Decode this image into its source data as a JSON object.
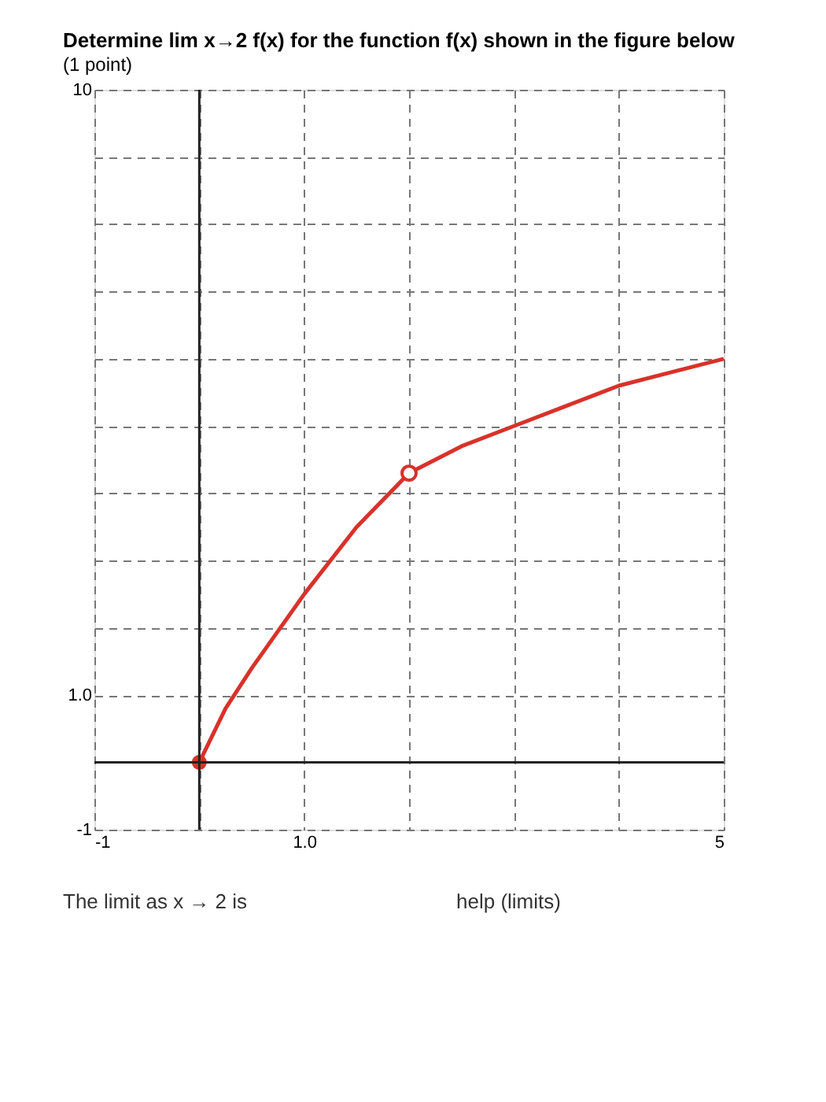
{
  "chart_data": {
    "type": "line",
    "title": "Determine lim x→2 f(x) for the function f(x) shown in the figure below",
    "subtitle": "(1 point)",
    "annotations": [
      "The limit as x → 2 is",
      "help (limits)"
    ],
    "xlim": [
      -1,
      5
    ],
    "ylim": [
      -1,
      10
    ],
    "xticks": [
      {
        "value": -1,
        "label": "-1"
      },
      {
        "value": 0,
        "label": null
      },
      {
        "value": 1,
        "label": "1.0"
      },
      {
        "value": 2,
        "label": null
      },
      {
        "value": 3,
        "label": null
      },
      {
        "value": 4,
        "label": null
      },
      {
        "value": 5,
        "label": "5"
      }
    ],
    "yticks": [
      {
        "value": -1,
        "label": "-1"
      },
      {
        "value": 0,
        "label": null
      },
      {
        "value": 1,
        "label": "1.0"
      },
      {
        "value": 2,
        "label": null
      },
      {
        "value": 3,
        "label": null
      },
      {
        "value": 4,
        "label": null
      },
      {
        "value": 5,
        "label": null
      },
      {
        "value": 6,
        "label": null
      },
      {
        "value": 7,
        "label": null
      },
      {
        "value": 8,
        "label": null
      },
      {
        "value": 9,
        "label": null
      },
      {
        "value": 10,
        "label": "10"
      }
    ],
    "grid": true,
    "series": [
      {
        "color": "#d8322a",
        "marker": "none",
        "x": [
          0,
          0.25,
          0.5,
          1,
          1.5,
          2,
          2.5,
          3,
          3.5,
          4,
          4.5,
          5
        ],
        "values": [
          0,
          0.8,
          1.4,
          2.5,
          3.5,
          4.3,
          4.7,
          5.0,
          5.3,
          5.6,
          5.8,
          6.0
        ]
      },
      {
        "type": "scatter",
        "color": "#d8322a",
        "marker": "circle",
        "x": [
          0
        ],
        "values": [
          0
        ]
      },
      {
        "type": "scatter",
        "color": "#d8322a",
        "x": [
          2
        ],
        "values": [
          4.3
        ]
      }
    ]
  }
}
